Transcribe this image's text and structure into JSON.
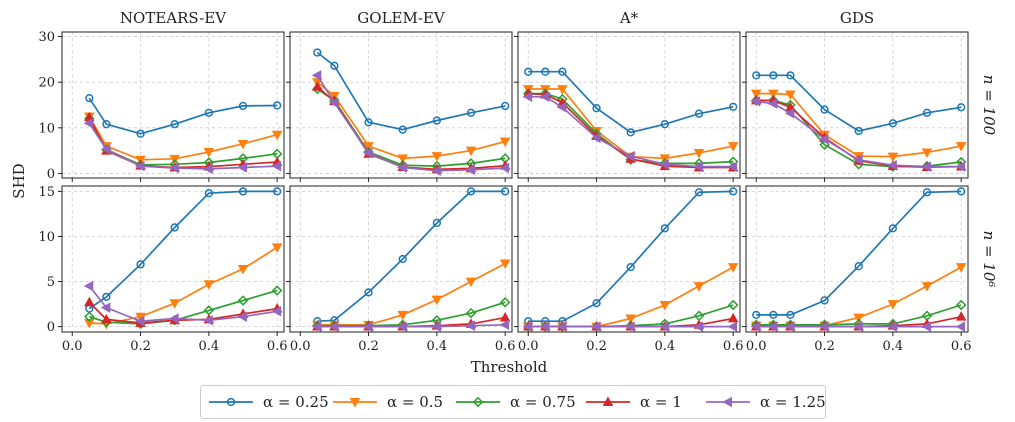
{
  "figure": {
    "ylabel": "SHD",
    "xlabel": "Threshold",
    "column_titles": [
      "NOTEARS-EV",
      "GOLEM-EV",
      "A*",
      "GDS"
    ],
    "row_labels": [
      "n = 100",
      "n = 10⁶"
    ]
  },
  "legend": [
    {
      "label": "α = 0.25",
      "color": "#1f77b4",
      "marker": "circle"
    },
    {
      "label": "α = 0.5",
      "color": "#ff7f0e",
      "marker": "triangle-down"
    },
    {
      "label": "α = 0.75",
      "color": "#2ca02c",
      "marker": "diamond"
    },
    {
      "label": "α = 1",
      "color": "#d62728",
      "marker": "triangle-up"
    },
    {
      "label": "α = 1.25",
      "color": "#9467bd",
      "marker": "triangle-left"
    }
  ],
  "chart_data": {
    "type": "line",
    "x": [
      0.05,
      0.1,
      0.2,
      0.3,
      0.4,
      0.5,
      0.6
    ],
    "xlim": [
      -0.03,
      0.62
    ],
    "xticks": [
      0.0,
      0.2,
      0.4,
      0.6
    ],
    "xtick_labels": [
      "0.0",
      "0.2",
      "0.4",
      "0.6"
    ],
    "grid": true,
    "rows": [
      {
        "label": "n = 100",
        "ylim": [
          -1,
          31
        ],
        "yticks": [
          0,
          10,
          20,
          30
        ],
        "ytick_labels": [
          "0",
          "10",
          "20",
          "30"
        ],
        "panels": [
          {
            "title": "NOTEARS-EV",
            "series": [
              {
                "name": "α = 0.25",
                "values": [
                  16.5,
                  10.8,
                  8.7,
                  10.8,
                  13.3,
                  14.8,
                  14.9
                ]
              },
              {
                "name": "α = 0.5",
                "values": [
                  12.5,
                  6.0,
                  3.0,
                  3.2,
                  4.7,
                  6.5,
                  8.5
                ]
              },
              {
                "name": "α = 0.75",
                "values": [
                  12.0,
                  5.2,
                  1.9,
                  2.0,
                  2.4,
                  3.3,
                  4.3
                ]
              },
              {
                "name": "α = 1",
                "values": [
                  12.3,
                  5.0,
                  1.7,
                  1.3,
                  1.5,
                  2.0,
                  2.5
                ]
              },
              {
                "name": "α = 1.25",
                "values": [
                  11.0,
                  5.3,
                  1.6,
                  1.2,
                  1.0,
                  1.3,
                  1.6
                ]
              }
            ]
          },
          {
            "title": "GOLEM-EV",
            "series": [
              {
                "name": "α = 0.25",
                "values": [
                  26.5,
                  23.6,
                  11.2,
                  9.6,
                  11.6,
                  13.3,
                  14.8
                ]
              },
              {
                "name": "α = 0.5",
                "values": [
                  20.0,
                  17.0,
                  6.0,
                  3.3,
                  3.8,
                  5.0,
                  7.0
                ]
              },
              {
                "name": "α = 0.75",
                "values": [
                  18.5,
                  16.0,
                  4.7,
                  1.8,
                  1.6,
                  2.2,
                  3.3
                ]
              },
              {
                "name": "α = 1",
                "values": [
                  19.0,
                  15.8,
                  4.3,
                  1.4,
                  0.9,
                  1.1,
                  1.7
                ]
              },
              {
                "name": "α = 1.25",
                "values": [
                  21.5,
                  15.5,
                  4.5,
                  1.3,
                  0.6,
                  0.8,
                  1.2
                ]
              }
            ]
          },
          {
            "title": "A*",
            "series": [
              {
                "name": "α = 0.25",
                "values": [
                  22.3,
                  22.3,
                  22.3,
                  14.3,
                  9.0,
                  10.8,
                  13.1,
                  14.6
                ]
              },
              {
                "name": "α = 0.5",
                "values": [
                  18.5,
                  18.5,
                  18.5,
                  9.3,
                  3.7,
                  3.3,
                  4.5,
                  6.0
                ]
              },
              {
                "name": "α = 0.75",
                "values": [
                  17.5,
                  17.5,
                  16.3,
                  8.7,
                  3.0,
                  2.2,
                  2.2,
                  2.6
                ]
              },
              {
                "name": "α = 1",
                "values": [
                  17.5,
                  17.3,
                  15.5,
                  8.2,
                  3.2,
                  1.6,
                  1.3,
                  1.3
                ]
              },
              {
                "name": "α = 1.25",
                "values": [
                  16.8,
                  16.8,
                  14.5,
                  7.8,
                  3.8,
                  2.0,
                  1.5,
                  1.5
                ]
              }
            ]
          },
          {
            "title": "GDS",
            "series": [
              {
                "name": "α = 0.25",
                "values": [
                  21.5,
                  21.5,
                  21.5,
                  14.0,
                  9.3,
                  11.0,
                  13.3,
                  14.5
                ]
              },
              {
                "name": "α = 0.5",
                "values": [
                  17.5,
                  17.5,
                  17.3,
                  8.5,
                  3.8,
                  3.7,
                  4.6,
                  6.0
                ]
              },
              {
                "name": "α = 0.75",
                "values": [
                  16.0,
                  16.0,
                  15.0,
                  6.3,
                  2.0,
                  1.5,
                  1.6,
                  2.5
                ]
              },
              {
                "name": "α = 1",
                "values": [
                  16.0,
                  16.0,
                  14.5,
                  7.8,
                  2.8,
                  1.6,
                  1.4,
                  1.5
                ]
              },
              {
                "name": "α = 1.25",
                "values": [
                  15.8,
                  15.3,
                  13.2,
                  7.5,
                  3.0,
                  1.8,
                  1.5,
                  1.5
                ]
              }
            ]
          }
        ]
      },
      {
        "label": "n = 10⁶",
        "ylim": [
          -0.6,
          15.6
        ],
        "yticks": [
          0,
          5,
          10,
          15
        ],
        "ytick_labels": [
          "0",
          "5",
          "10",
          "15"
        ],
        "panels": [
          {
            "title": "NOTEARS-EV",
            "series": [
              {
                "name": "α = 0.25",
                "values": [
                  2.0,
                  3.3,
                  6.9,
                  11.0,
                  14.8,
                  15.0,
                  15.0
                ]
              },
              {
                "name": "α = 0.5",
                "values": [
                  0.4,
                  0.3,
                  1.1,
                  2.6,
                  4.7,
                  6.4,
                  8.8
                ]
              },
              {
                "name": "α = 0.75",
                "values": [
                  1.1,
                  0.5,
                  0.3,
                  0.7,
                  1.8,
                  2.9,
                  4.0
                ]
              },
              {
                "name": "α = 1",
                "values": [
                  2.7,
                  0.8,
                  0.4,
                  0.7,
                  0.8,
                  1.4,
                  2.0
                ]
              },
              {
                "name": "α = 1.25",
                "values": [
                  4.5,
                  2.1,
                  0.6,
                  0.9,
                  0.7,
                  1.1,
                  1.7
                ]
              }
            ]
          },
          {
            "title": "GOLEM-EV",
            "series": [
              {
                "name": "α = 0.25",
                "values": [
                  0.6,
                  0.7,
                  3.8,
                  7.5,
                  11.5,
                  15.0,
                  15.0
                ]
              },
              {
                "name": "α = 0.5",
                "values": [
                  0.2,
                  0.2,
                  0.2,
                  1.3,
                  3.0,
                  5.0,
                  7.0
                ]
              },
              {
                "name": "α = 0.75",
                "values": [
                  0.1,
                  0.1,
                  0.1,
                  0.2,
                  0.7,
                  1.5,
                  2.7
                ]
              },
              {
                "name": "α = 1",
                "values": [
                  0.0,
                  0.0,
                  0.0,
                  0.0,
                  0.1,
                  0.3,
                  1.0
                ]
              },
              {
                "name": "α = 1.25",
                "values": [
                  0.0,
                  0.0,
                  0.0,
                  0.0,
                  0.0,
                  0.1,
                  0.2
                ]
              }
            ]
          },
          {
            "title": "A*",
            "series": [
              {
                "name": "α = 0.25",
                "values": [
                  0.6,
                  0.6,
                  0.6,
                  2.6,
                  6.6,
                  10.9,
                  14.9,
                  15.0
                ]
              },
              {
                "name": "α = 0.5",
                "values": [
                  0.0,
                  0.0,
                  0.0,
                  0.0,
                  0.9,
                  2.4,
                  4.5,
                  6.6
                ]
              },
              {
                "name": "α = 0.75",
                "values": [
                  0.0,
                  0.0,
                  0.0,
                  0.0,
                  0.1,
                  0.3,
                  1.2,
                  2.4
                ]
              },
              {
                "name": "α = 1",
                "values": [
                  0.0,
                  0.0,
                  0.0,
                  0.0,
                  0.0,
                  0.0,
                  0.2,
                  0.9
                ]
              },
              {
                "name": "α = 1.25",
                "values": [
                  0.0,
                  0.0,
                  0.0,
                  0.0,
                  0.0,
                  0.0,
                  0.0,
                  0.0
                ]
              }
            ]
          },
          {
            "title": "GDS",
            "series": [
              {
                "name": "α = 0.25",
                "values": [
                  1.3,
                  1.3,
                  1.3,
                  2.9,
                  6.7,
                  10.9,
                  14.9,
                  15.0
                ]
              },
              {
                "name": "α = 0.5",
                "values": [
                  0.1,
                  0.1,
                  0.1,
                  0.1,
                  1.0,
                  2.5,
                  4.5,
                  6.6
                ]
              },
              {
                "name": "α = 0.75",
                "values": [
                  0.2,
                  0.2,
                  0.2,
                  0.2,
                  0.3,
                  0.3,
                  1.2,
                  2.4
                ]
              },
              {
                "name": "α = 1",
                "values": [
                  0.0,
                  0.0,
                  0.0,
                  0.0,
                  0.0,
                  0.1,
                  0.3,
                  1.1
                ]
              },
              {
                "name": "α = 1.25",
                "values": [
                  0.0,
                  0.0,
                  0.0,
                  0.0,
                  0.0,
                  0.0,
                  0.0,
                  0.0
                ]
              }
            ]
          }
        ]
      }
    ],
    "x_dense": [
      0.0,
      0.05,
      0.1,
      0.2,
      0.3,
      0.4,
      0.5,
      0.6
    ]
  }
}
